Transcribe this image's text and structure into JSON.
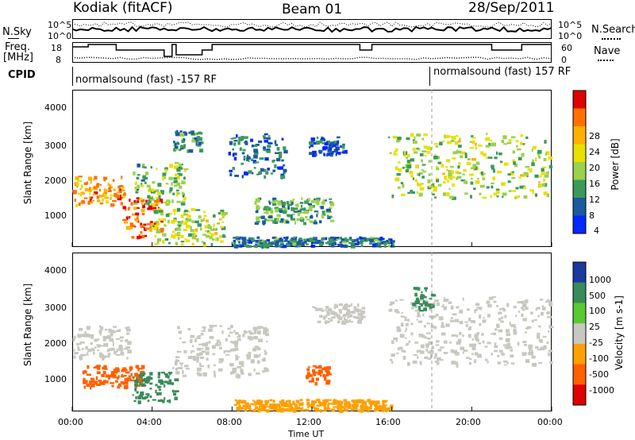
{
  "header": {
    "station": "Kodiak (fitACF)",
    "beam": "Beam 01",
    "date": "28/Sep/2011"
  },
  "top_panels": {
    "nsky_label": "N.Sky",
    "nsky_ticks": [
      "10^5",
      "10^0"
    ],
    "nsearch_label": "N.Search",
    "nsearch_ticks": [
      "10^5",
      "10^0"
    ],
    "freq_label": "Freq.",
    "freq_unit": "[MHz]",
    "freq_ticks": [
      "18",
      "8"
    ],
    "nave_label": "Nave",
    "nave_ticks": [
      "60",
      "0"
    ],
    "cpid_label": "CPID",
    "cpid_segments": [
      {
        "label": "normalsound (fast) -157 RF",
        "start_hour": 0,
        "end_hour": 18
      },
      {
        "label": "normalsound (fast) 157 RF",
        "start_hour": 18,
        "end_hour": 24
      }
    ]
  },
  "power_panel": {
    "ylabel": "Slant Range [km]",
    "yticks": [
      "4000",
      "3000",
      "2000",
      "1000"
    ],
    "colorbar_label": "Power [dB]",
    "colorbar_ticks": [
      "28",
      "24",
      "20",
      "16",
      "12",
      "8",
      "4"
    ],
    "colors": [
      "#e00000",
      "#ff7000",
      "#ffb000",
      "#e8e000",
      "#9ad24a",
      "#3a9a5a",
      "#1c5aa0",
      "#0028ff"
    ]
  },
  "velocity_panel": {
    "ylabel": "Slant Range [km]",
    "yticks": [
      "4000",
      "3000",
      "2000",
      "1000"
    ],
    "colorbar_label": "Velocity [m s-1]",
    "colorbar_ticks": [
      "1000",
      "500",
      "100",
      "25",
      "-25",
      "-100",
      "-500",
      "-1000"
    ],
    "colors": [
      "#1a3aa0",
      "#3a8a5a",
      "#5aca30",
      "#c8c8c0",
      "#ffa000",
      "#ff6000",
      "#e00000"
    ]
  },
  "xaxis": {
    "label": "Time UT",
    "ticks": [
      "00:00",
      "04:00",
      "08:00",
      "12:00",
      "16:00",
      "20:00",
      "00:00"
    ]
  },
  "chart_data": {
    "type": "heatmap",
    "title": "Kodiak (fitACF)  Beam 01  28/Sep/2011",
    "xlabel": "Time UT",
    "ylabel": "Slant Range [km]",
    "xlim_hours": [
      0,
      24
    ],
    "ylim_km": [
      200,
      4600
    ],
    "power_scale_db": [
      0,
      30
    ],
    "velocity_scale_ms": [
      -1000,
      1000
    ],
    "power_blobs": [
      {
        "t0": 0.0,
        "t1": 2.6,
        "r0": 1400,
        "r1": 2200,
        "level": 22
      },
      {
        "t0": 2.5,
        "t1": 4.5,
        "r0": 500,
        "r1": 1600,
        "level": 26
      },
      {
        "t0": 3.0,
        "t1": 5.6,
        "r0": 1400,
        "r1": 2600,
        "level": 12
      },
      {
        "t0": 4.0,
        "t1": 7.6,
        "r0": 300,
        "r1": 1300,
        "level": 14
      },
      {
        "t0": 5.0,
        "t1": 6.4,
        "r0": 2900,
        "r1": 3500,
        "level": 8
      },
      {
        "t0": 7.8,
        "t1": 10.6,
        "r0": 2200,
        "r1": 3400,
        "level": 6
      },
      {
        "t0": 9.0,
        "t1": 13.0,
        "r0": 900,
        "r1": 1600,
        "level": 10
      },
      {
        "t0": 11.8,
        "t1": 13.6,
        "r0": 2800,
        "r1": 3300,
        "level": 5
      },
      {
        "t0": 15.8,
        "t1": 23.9,
        "r0": 1600,
        "r1": 3400,
        "level": 14
      },
      {
        "t0": 8.0,
        "t1": 16.0,
        "r0": 250,
        "r1": 500,
        "level": 7
      }
    ],
    "velocity_blobs": [
      {
        "t0": 0.0,
        "t1": 2.8,
        "r0": 1700,
        "r1": 2600,
        "level": 0
      },
      {
        "t0": 0.5,
        "t1": 3.5,
        "r0": 900,
        "r1": 1500,
        "level": -200
      },
      {
        "t0": 3.0,
        "t1": 5.2,
        "r0": 500,
        "r1": 1300,
        "level": 300
      },
      {
        "t0": 5.0,
        "t1": 9.8,
        "r0": 1200,
        "r1": 2600,
        "level": 0
      },
      {
        "t0": 11.6,
        "t1": 12.8,
        "r0": 1000,
        "r1": 1500,
        "level": -150
      },
      {
        "t0": 12.0,
        "t1": 14.5,
        "r0": 2700,
        "r1": 3200,
        "level": 0
      },
      {
        "t0": 15.8,
        "t1": 23.9,
        "r0": 1500,
        "r1": 3400,
        "level": 0
      },
      {
        "t0": 17.0,
        "t1": 18.0,
        "r0": 3000,
        "r1": 3700,
        "level": 120
      },
      {
        "t0": 8.0,
        "t1": 16.0,
        "r0": 250,
        "r1": 550,
        "level": -80
      }
    ]
  }
}
